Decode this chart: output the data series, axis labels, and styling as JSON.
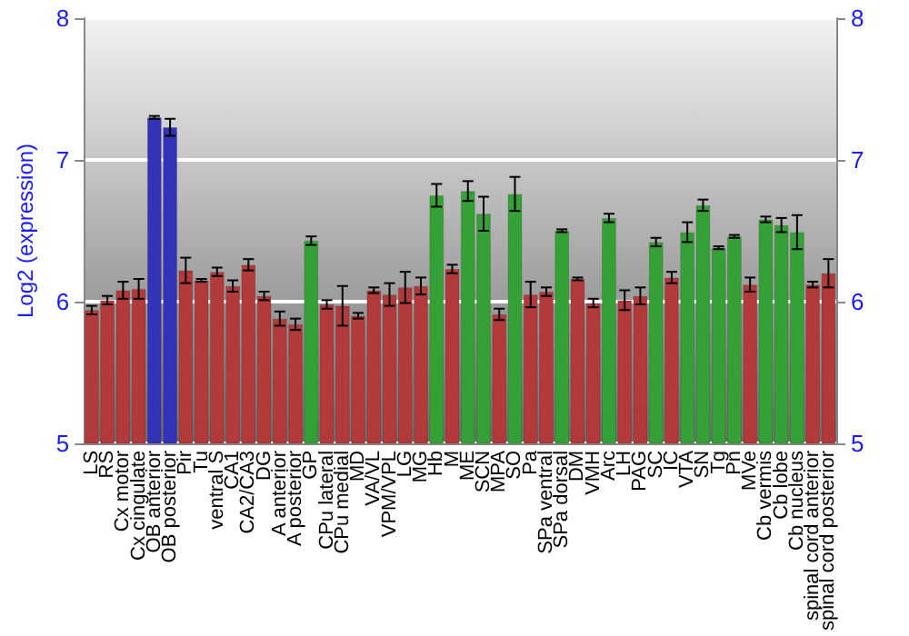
{
  "chart_data": {
    "type": "bar",
    "ylabel": "Log2 (expression)",
    "categories": [
      "LS",
      "RS",
      "Cx motor",
      "Cx cingulate",
      "OB anterior",
      "OB posterior",
      "Pir",
      "Tu",
      "ventral S",
      "CA1",
      "CA2/CA3",
      "DG",
      "A anterior",
      "A posterior",
      "GP",
      "CPu lateral",
      "CPu medial",
      "MD",
      "VA/VL",
      "VPM/VPL",
      "LG",
      "MG",
      "Hb",
      "M",
      "ME",
      "SCN",
      "MPA",
      "SO",
      "Pa",
      "SPa ventral",
      "SPa dorsal",
      "DM",
      "VMH",
      "Arc",
      "LH",
      "PAG",
      "SC",
      "IC",
      "VTA",
      "SN",
      "Tg",
      "Pn",
      "MVe",
      "Cb vermis",
      "Cb lobe",
      "Cb nucleus",
      "spinal cord anterior",
      "spinal cord posterior"
    ],
    "values": [
      5.94,
      6.01,
      6.08,
      6.09,
      7.3,
      7.23,
      6.22,
      6.15,
      6.21,
      6.11,
      6.26,
      6.04,
      5.88,
      5.84,
      6.43,
      5.98,
      5.97,
      5.9,
      6.08,
      6.05,
      6.1,
      6.11,
      6.75,
      6.23,
      6.78,
      6.62,
      5.91,
      6.76,
      6.05,
      6.07,
      6.5,
      6.16,
      5.99,
      6.59,
      6.01,
      6.04,
      6.42,
      6.17,
      6.49,
      6.68,
      6.38,
      6.46,
      6.12,
      6.58,
      6.54,
      6.49,
      6.12,
      6.2
    ],
    "errors": [
      0.03,
      0.03,
      0.06,
      0.07,
      0.01,
      0.06,
      0.09,
      0.01,
      0.03,
      0.04,
      0.04,
      0.03,
      0.05,
      0.04,
      0.03,
      0.03,
      0.14,
      0.02,
      0.02,
      0.08,
      0.11,
      0.06,
      0.08,
      0.03,
      0.07,
      0.12,
      0.04,
      0.12,
      0.09,
      0.03,
      0.01,
      0.01,
      0.03,
      0.03,
      0.07,
      0.06,
      0.03,
      0.04,
      0.07,
      0.04,
      0.01,
      0.01,
      0.05,
      0.02,
      0.05,
      0.12,
      0.02,
      0.1
    ],
    "colors": [
      "#b23a3a",
      "#b23a3a",
      "#b23a3a",
      "#b23a3a",
      "#3333b8",
      "#3333b8",
      "#b23a3a",
      "#b23a3a",
      "#b23a3a",
      "#b23a3a",
      "#b23a3a",
      "#b23a3a",
      "#b23a3a",
      "#b23a3a",
      "#35a035",
      "#b23a3a",
      "#b23a3a",
      "#b23a3a",
      "#b23a3a",
      "#b23a3a",
      "#b23a3a",
      "#b23a3a",
      "#35a035",
      "#b23a3a",
      "#35a035",
      "#35a035",
      "#b23a3a",
      "#35a035",
      "#b23a3a",
      "#b23a3a",
      "#35a035",
      "#b23a3a",
      "#b23a3a",
      "#35a035",
      "#b23a3a",
      "#b23a3a",
      "#35a035",
      "#b23a3a",
      "#35a035",
      "#35a035",
      "#35a035",
      "#35a035",
      "#b23a3a",
      "#35a035",
      "#35a035",
      "#35a035",
      "#b23a3a",
      "#b23a3a"
    ],
    "ylim": [
      5,
      8
    ],
    "yticks": [
      5,
      6,
      7,
      8
    ],
    "y2lim": [
      5,
      8
    ],
    "y2ticks": [
      5,
      6,
      7,
      8
    ],
    "grid": "y"
  }
}
